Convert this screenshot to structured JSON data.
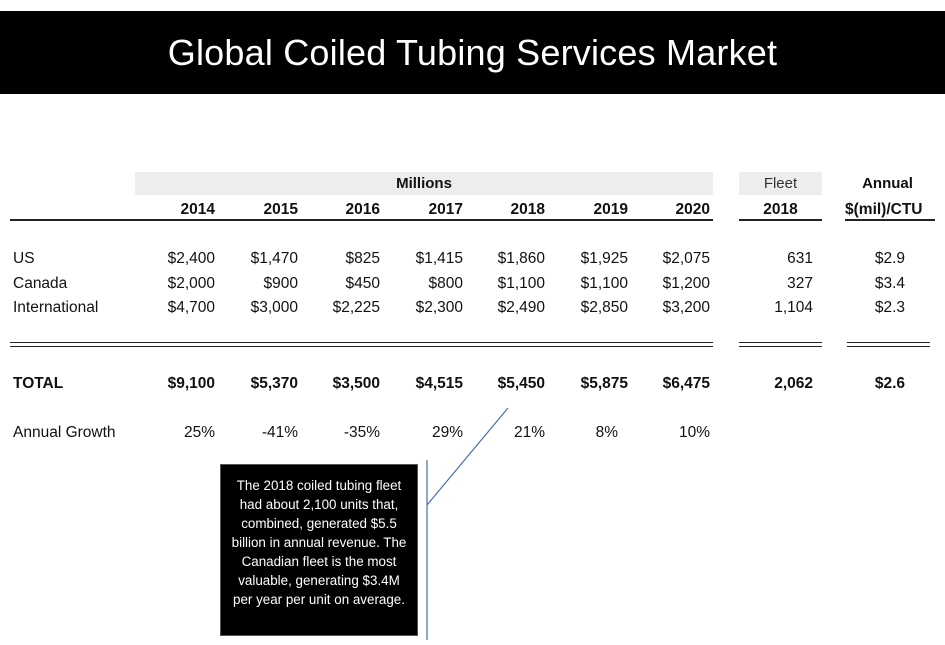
{
  "title": "Global Coiled Tubing Services Market",
  "header": {
    "millions": "Millions",
    "fleet": "Fleet",
    "annual": "Annual",
    "fleet_year": "2018",
    "per_ctu": "$(mil)/CTU",
    "years": [
      "2014",
      "2015",
      "2016",
      "2017",
      "2018",
      "2019",
      "2020"
    ]
  },
  "rows": [
    {
      "label": "US",
      "values": [
        "$2,400",
        "$1,470",
        "$825",
        "$1,415",
        "$1,860",
        "$1,925",
        "$2,075"
      ],
      "fleet": "631",
      "per_ctu": "$2.9"
    },
    {
      "label": "Canada",
      "values": [
        "$2,000",
        "$900",
        "$450",
        "$800",
        "$1,100",
        "$1,100",
        "$1,200"
      ],
      "fleet": "327",
      "per_ctu": "$3.4"
    },
    {
      "label": "International",
      "values": [
        "$4,700",
        "$3,000",
        "$2,225",
        "$2,300",
        "$2,490",
        "$2,850",
        "$3,200"
      ],
      "fleet": "1,104",
      "per_ctu": "$2.3"
    }
  ],
  "total": {
    "label": "TOTAL",
    "values": [
      "$9,100",
      "$5,370",
      "$3,500",
      "$4,515",
      "$5,450",
      "$5,875",
      "$6,475"
    ],
    "fleet": "2,062",
    "per_ctu": "$2.6"
  },
  "growth": {
    "label": "Annual Growth",
    "values": [
      "25%",
      "-41%",
      "-35%",
      "29%",
      "21%",
      "8%",
      "10%"
    ]
  },
  "note": "The 2018 coiled tubing fleet had about 2,100 units that, combined, generated $5.5 billion in annual revenue.  The Canadian fleet is the most valuable, generating $3.4M per year per unit on average."
}
